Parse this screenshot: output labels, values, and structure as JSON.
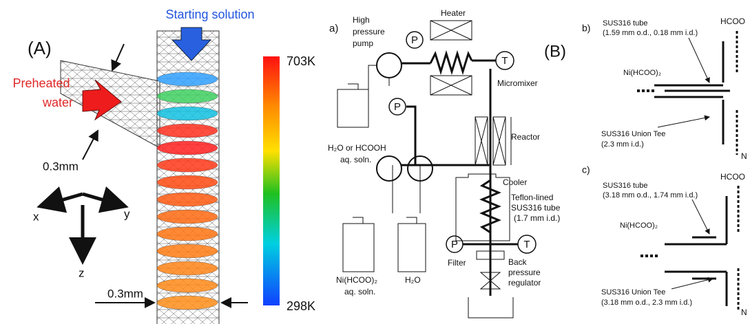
{
  "panel_a": {
    "label": "(A)",
    "starting_solution": "Starting solution",
    "preheated_water": [
      "Preheated",
      "water"
    ],
    "inlet_width": "0.3mm",
    "outlet_width": "0.3mm",
    "axes": {
      "x": "x",
      "y": "y",
      "z": "z"
    },
    "colorbar": {
      "max": "703K",
      "min": "298K"
    }
  },
  "panel_b": {
    "label": "(B)",
    "a": {
      "label": "a)",
      "pump": [
        "High",
        "pressure",
        "pump"
      ],
      "heater": "Heater",
      "pressure_gauges": [
        "P",
        "P",
        "P"
      ],
      "thermometers": [
        "T",
        "T"
      ],
      "micromixer": "Micromixer",
      "reactor": "Reactor",
      "feed": [
        "H₂O or HCOOH",
        "aq. soln."
      ],
      "cooler": "Cooler",
      "tube": [
        "Teflon-lined",
        "SUS316 tube",
        "(1.7 mm i.d.)"
      ],
      "ni_feed": [
        "Ni(HCOO)₂",
        "aq. soln."
      ],
      "water": "H₂O",
      "filter": "Filter",
      "regulator": [
        "Back",
        "pressure",
        "regulator"
      ]
    },
    "b": {
      "label": "b)",
      "tube": [
        "SUS316 tube",
        "(1.59 mm o.d., 0.18 mm i.d.)"
      ],
      "top_inlet": "HCOO",
      "side_inlet": "Ni(HCOO)₂",
      "tee": [
        "SUS316 Union Tee",
        "(2.3 mm i.d.)"
      ],
      "outlet": "N"
    },
    "c": {
      "label": "c)",
      "tube": [
        "SUS316 tube",
        "(3.18 mm o.d., 1.74 mm i.d.)"
      ],
      "top_inlet": "HCOO",
      "side_inlet": "Ni(HCOO)₂",
      "tee": [
        "SUS316 Union Tee",
        "(3.18 mm o.d., 2.3 mm i.d.)"
      ],
      "outlet": "N"
    }
  }
}
